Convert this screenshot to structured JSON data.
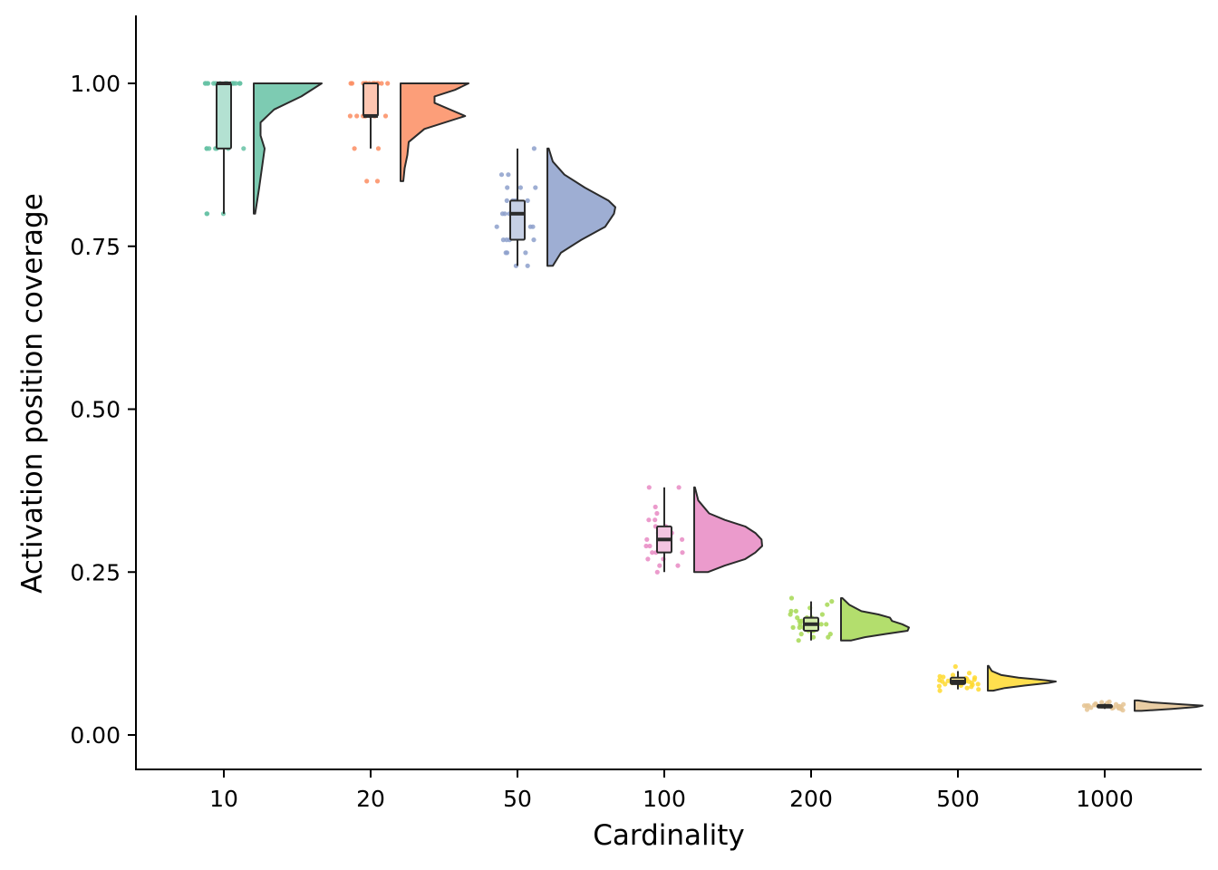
{
  "chart_data": {
    "type": "raincloud",
    "title": "",
    "xlabel": "Cardinality",
    "ylabel": "Activation position coverage",
    "categories": [
      "10",
      "20",
      "50",
      "100",
      "200",
      "500",
      "1000"
    ],
    "ylim": [
      -0.05,
      1.1
    ],
    "yticks": [
      0.0,
      0.25,
      0.5,
      0.75,
      1.0
    ],
    "ytick_labels": [
      "0.00",
      "0.25",
      "0.50",
      "0.75",
      "1.00"
    ],
    "grid": false,
    "legend": "none",
    "groups": [
      {
        "category": "10",
        "color": "#66c2a5",
        "box": {
          "min": 0.8,
          "q1": 0.9,
          "median": 1.0,
          "q3": 1.0,
          "max": 1.0
        },
        "points": [
          1.0,
          1.0,
          1.0,
          1.0,
          1.0,
          1.0,
          1.0,
          1.0,
          1.0,
          1.0,
          1.0,
          1.0,
          1.0,
          1.0,
          1.0,
          1.0,
          0.9,
          0.9,
          0.9,
          0.9,
          0.9,
          0.9,
          0.9,
          0.8,
          0.8,
          0.8
        ],
        "density": [
          [
            0.8,
            0.02
          ],
          [
            0.82,
            0.05
          ],
          [
            0.84,
            0.08
          ],
          [
            0.87,
            0.12
          ],
          [
            0.9,
            0.16
          ],
          [
            0.92,
            0.1
          ],
          [
            0.94,
            0.1
          ],
          [
            0.96,
            0.3
          ],
          [
            0.98,
            0.7
          ],
          [
            1.0,
            1.0
          ]
        ]
      },
      {
        "category": "20",
        "color": "#fc8d62",
        "box": {
          "min": 0.9,
          "q1": 0.95,
          "median": 0.95,
          "q3": 1.0,
          "max": 1.0
        },
        "points": [
          1.0,
          1.0,
          1.0,
          1.0,
          1.0,
          1.0,
          1.0,
          1.0,
          1.0,
          1.0,
          1.0,
          1.0,
          1.0,
          1.0,
          0.95,
          0.95,
          0.95,
          0.95,
          0.95,
          0.95,
          0.95,
          0.95,
          0.95,
          0.95,
          0.9,
          0.9,
          0.85,
          0.85
        ],
        "density": [
          [
            0.85,
            0.04
          ],
          [
            0.87,
            0.06
          ],
          [
            0.89,
            0.1
          ],
          [
            0.91,
            0.12
          ],
          [
            0.93,
            0.35
          ],
          [
            0.95,
            0.95
          ],
          [
            0.97,
            0.5
          ],
          [
            0.98,
            0.5
          ],
          [
            0.99,
            0.8
          ],
          [
            1.0,
            1.0
          ]
        ]
      },
      {
        "category": "50",
        "color": "#8da0cb",
        "box": {
          "min": 0.72,
          "q1": 0.76,
          "median": 0.8,
          "q3": 0.82,
          "max": 0.9
        },
        "points": [
          0.72,
          0.72,
          0.74,
          0.74,
          0.74,
          0.76,
          0.76,
          0.76,
          0.76,
          0.78,
          0.78,
          0.78,
          0.8,
          0.8,
          0.8,
          0.8,
          0.8,
          0.82,
          0.82,
          0.82,
          0.82,
          0.84,
          0.84,
          0.84,
          0.86,
          0.86,
          0.9
        ],
        "density": [
          [
            0.72,
            0.08
          ],
          [
            0.74,
            0.2
          ],
          [
            0.76,
            0.5
          ],
          [
            0.78,
            0.85
          ],
          [
            0.8,
            0.98
          ],
          [
            0.81,
            1.0
          ],
          [
            0.82,
            0.9
          ],
          [
            0.84,
            0.55
          ],
          [
            0.86,
            0.25
          ],
          [
            0.88,
            0.08
          ],
          [
            0.9,
            0.02
          ]
        ]
      },
      {
        "category": "100",
        "color": "#e78ac3",
        "box": {
          "min": 0.25,
          "q1": 0.28,
          "median": 0.3,
          "q3": 0.32,
          "max": 0.38
        },
        "points": [
          0.25,
          0.26,
          0.26,
          0.27,
          0.27,
          0.28,
          0.28,
          0.28,
          0.29,
          0.29,
          0.3,
          0.3,
          0.3,
          0.3,
          0.31,
          0.31,
          0.32,
          0.32,
          0.33,
          0.33,
          0.34,
          0.35,
          0.38,
          0.38
        ],
        "density": [
          [
            0.25,
            0.2
          ],
          [
            0.26,
            0.45
          ],
          [
            0.27,
            0.75
          ],
          [
            0.28,
            0.9
          ],
          [
            0.29,
            1.0
          ],
          [
            0.3,
            0.99
          ],
          [
            0.31,
            0.9
          ],
          [
            0.32,
            0.75
          ],
          [
            0.33,
            0.45
          ],
          [
            0.34,
            0.22
          ],
          [
            0.36,
            0.06
          ],
          [
            0.38,
            0.01
          ]
        ]
      },
      {
        "category": "200",
        "color": "#a6d854",
        "box": {
          "min": 0.145,
          "q1": 0.16,
          "median": 0.17,
          "q3": 0.18,
          "max": 0.205
        },
        "points": [
          0.145,
          0.15,
          0.15,
          0.155,
          0.155,
          0.16,
          0.16,
          0.16,
          0.165,
          0.165,
          0.165,
          0.17,
          0.17,
          0.17,
          0.17,
          0.175,
          0.175,
          0.175,
          0.18,
          0.18,
          0.18,
          0.185,
          0.185,
          0.19,
          0.19,
          0.195,
          0.2,
          0.205,
          0.21
        ],
        "density": [
          [
            0.145,
            0.15
          ],
          [
            0.15,
            0.35
          ],
          [
            0.155,
            0.65
          ],
          [
            0.16,
            0.98
          ],
          [
            0.165,
            1.0
          ],
          [
            0.17,
            0.9
          ],
          [
            0.175,
            0.75
          ],
          [
            0.18,
            0.72
          ],
          [
            0.185,
            0.55
          ],
          [
            0.19,
            0.3
          ],
          [
            0.2,
            0.12
          ],
          [
            0.21,
            0.02
          ]
        ]
      },
      {
        "category": "500",
        "color": "#ffd92f",
        "box": {
          "min": 0.07,
          "q1": 0.078,
          "median": 0.082,
          "q3": 0.088,
          "max": 0.098
        },
        "points": [
          0.068,
          0.07,
          0.072,
          0.074,
          0.075,
          0.076,
          0.077,
          0.078,
          0.078,
          0.079,
          0.08,
          0.08,
          0.081,
          0.081,
          0.082,
          0.082,
          0.083,
          0.083,
          0.084,
          0.085,
          0.085,
          0.086,
          0.087,
          0.088,
          0.089,
          0.09,
          0.092,
          0.095,
          0.105
        ],
        "density": [
          [
            0.068,
            0.08
          ],
          [
            0.072,
            0.25
          ],
          [
            0.076,
            0.55
          ],
          [
            0.08,
            0.9
          ],
          [
            0.082,
            1.0
          ],
          [
            0.084,
            0.85
          ],
          [
            0.088,
            0.45
          ],
          [
            0.092,
            0.2
          ],
          [
            0.098,
            0.06
          ],
          [
            0.106,
            0.01
          ]
        ]
      },
      {
        "category": "1000",
        "color": "#e5c494",
        "box": {
          "min": 0.04,
          "q1": 0.042,
          "median": 0.044,
          "q3": 0.046,
          "max": 0.048
        },
        "points": [
          0.038,
          0.039,
          0.04,
          0.041,
          0.041,
          0.042,
          0.042,
          0.043,
          0.043,
          0.044,
          0.044,
          0.044,
          0.045,
          0.045,
          0.045,
          0.046,
          0.046,
          0.047,
          0.047,
          0.048,
          0.049,
          0.05,
          0.051
        ],
        "density": [
          [
            0.037,
            0.1
          ],
          [
            0.04,
            0.55
          ],
          [
            0.043,
            0.9
          ],
          [
            0.045,
            1.0
          ],
          [
            0.047,
            0.7
          ],
          [
            0.05,
            0.25
          ],
          [
            0.053,
            0.05
          ]
        ]
      }
    ]
  }
}
